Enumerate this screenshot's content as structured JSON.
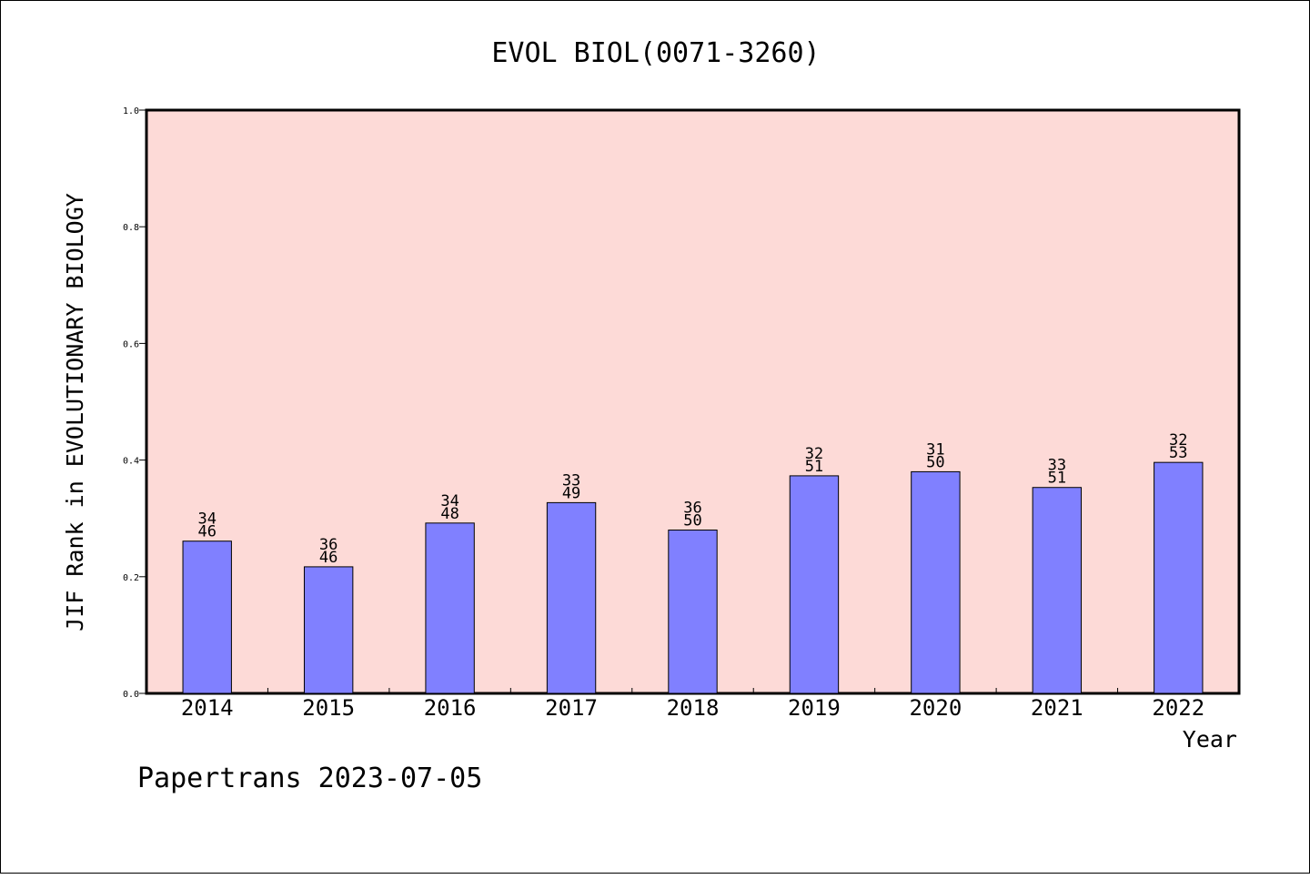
{
  "chart_data": {
    "type": "bar",
    "title": "EVOL BIOL(0071-3260)",
    "xlabel": "Year",
    "ylabel": "JIF Rank in EVOLUTIONARY BIOLOGY",
    "categories": [
      "2014",
      "2015",
      "2016",
      "2017",
      "2018",
      "2019",
      "2020",
      "2021",
      "2022"
    ],
    "values": [
      0.261,
      0.217,
      0.292,
      0.327,
      0.28,
      0.373,
      0.38,
      0.353,
      0.396
    ],
    "bar_labels_top": [
      "34",
      "36",
      "34",
      "33",
      "36",
      "32",
      "31",
      "33",
      "32"
    ],
    "bar_labels_bottom": [
      "46",
      "46",
      "48",
      "49",
      "50",
      "51",
      "50",
      "51",
      "53"
    ],
    "ylim": [
      0,
      1.0
    ],
    "yticks": [
      "0.0",
      "0.2",
      "0.4",
      "0.6",
      "0.8",
      "1.0"
    ],
    "grid": false,
    "colors": {
      "plot_background": "#fddad7",
      "bar": "#8080ff"
    }
  },
  "footer": {
    "text": "Papertrans 2023-07-05"
  }
}
